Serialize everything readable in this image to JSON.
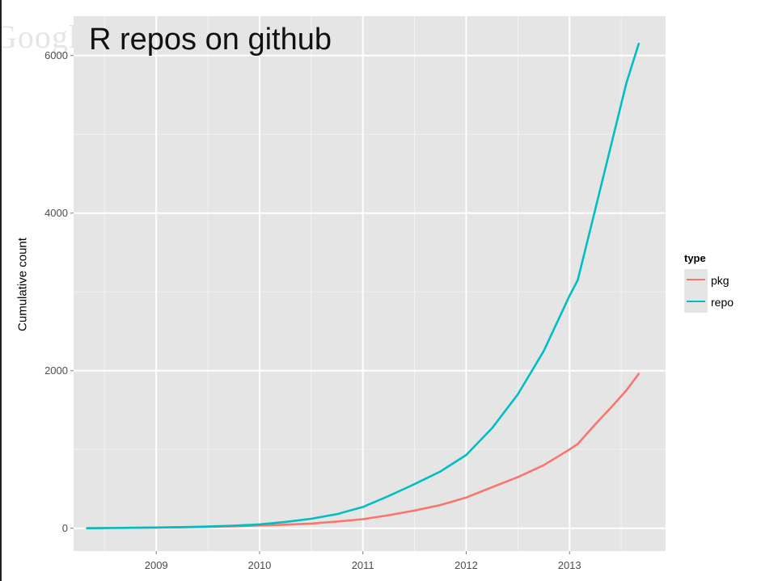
{
  "watermark": "Google",
  "chart_data": {
    "type": "line",
    "title": "R repos on github",
    "xlabel": "",
    "ylabel": "Cumulative count",
    "xlim": [
      2008.2,
      2013.93
    ],
    "ylim": [
      -290,
      6500
    ],
    "x_ticks": [
      2009,
      2010,
      2011,
      2012,
      2013
    ],
    "x_tick_labels": [
      "2009",
      "2010",
      "2011",
      "2012",
      "2013"
    ],
    "y_ticks": [
      0,
      2000,
      4000,
      6000
    ],
    "y_tick_labels": [
      "0",
      "2000",
      "4000",
      "6000"
    ],
    "grid": true,
    "legend": {
      "title": "type",
      "position": "right"
    },
    "series": [
      {
        "name": "pkg",
        "color": "#f8766d",
        "x": [
          2008.33,
          2008.5,
          2008.75,
          2009.0,
          2009.25,
          2009.5,
          2009.75,
          2010.0,
          2010.25,
          2010.5,
          2010.75,
          2011.0,
          2011.25,
          2011.5,
          2011.75,
          2012.0,
          2012.25,
          2012.5,
          2012.75,
          2013.0,
          2013.08,
          2013.25,
          2013.4,
          2013.55,
          2013.67
        ],
        "y": [
          0,
          2,
          5,
          8,
          12,
          18,
          25,
          35,
          45,
          60,
          85,
          115,
          165,
          225,
          295,
          390,
          520,
          650,
          800,
          1000,
          1070,
          1320,
          1530,
          1750,
          1960
        ]
      },
      {
        "name": "repo",
        "color": "#00bfc4",
        "x": [
          2008.33,
          2008.5,
          2008.75,
          2009.0,
          2009.25,
          2009.5,
          2009.75,
          2010.0,
          2010.25,
          2010.5,
          2010.75,
          2011.0,
          2011.25,
          2011.5,
          2011.75,
          2012.0,
          2012.25,
          2012.5,
          2012.75,
          2013.0,
          2013.08,
          2013.25,
          2013.4,
          2013.55,
          2013.67
        ],
        "y": [
          0,
          2,
          5,
          10,
          15,
          22,
          32,
          50,
          80,
          120,
          180,
          270,
          410,
          560,
          720,
          930,
          1270,
          1700,
          2250,
          2950,
          3150,
          4050,
          4850,
          5650,
          6150
        ]
      }
    ]
  }
}
